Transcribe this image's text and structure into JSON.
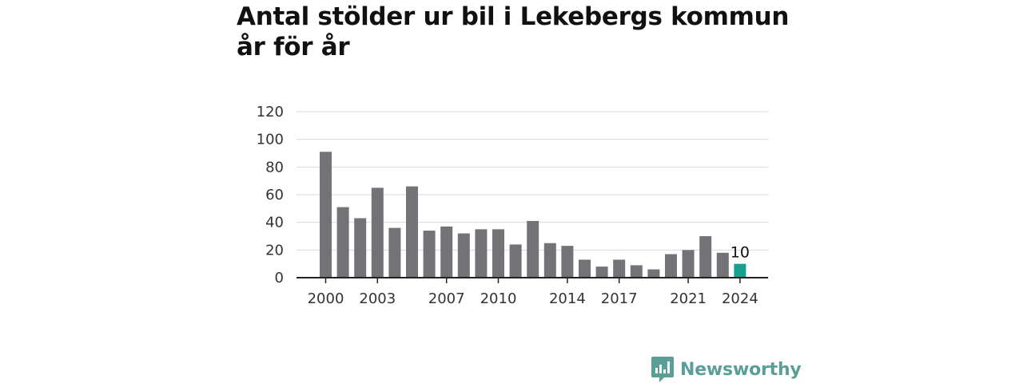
{
  "title": "Antal stölder ur bil i Lekebergs kommun år för år",
  "brand": {
    "name": "Newsworthy",
    "icon": "newsworthy-logo-icon",
    "color": "#5a9e98"
  },
  "chart_data": {
    "type": "bar",
    "title": "Antal stölder ur bil i Lekebergs kommun år för år",
    "xlabel": "",
    "ylabel": "",
    "categories": [
      2000,
      2001,
      2002,
      2003,
      2004,
      2005,
      2006,
      2007,
      2008,
      2009,
      2010,
      2011,
      2012,
      2013,
      2014,
      2015,
      2016,
      2017,
      2018,
      2019,
      2020,
      2021,
      2022,
      2023,
      2024
    ],
    "values": [
      91,
      51,
      43,
      65,
      36,
      66,
      34,
      37,
      32,
      35,
      35,
      24,
      41,
      25,
      23,
      13,
      8,
      13,
      9,
      6,
      17,
      20,
      30,
      18,
      10
    ],
    "x_tick_labels": [
      "2000",
      "2003",
      "2007",
      "2010",
      "2014",
      "2017",
      "2021",
      "2024"
    ],
    "y_ticks": [
      0,
      20,
      40,
      60,
      80,
      100,
      120
    ],
    "ylim": [
      0,
      120
    ],
    "grid": "horizontal",
    "legend": "none",
    "highlight": {
      "category": 2024,
      "label": "10"
    },
    "colors": {
      "bar": "#737276",
      "highlight": "#1a9e8f",
      "grid": "#d9d9d9",
      "axis": "#222222"
    }
  }
}
